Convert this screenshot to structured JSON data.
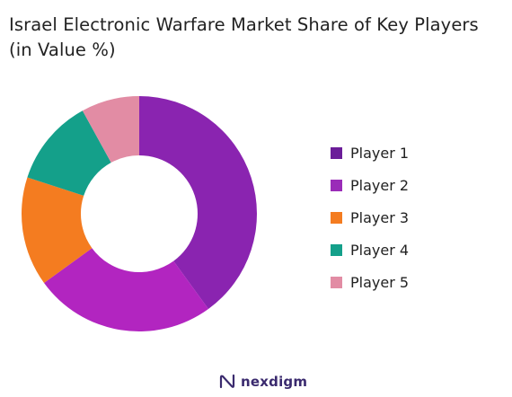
{
  "title_line1": "Israel Electronic Warfare Market Share of Key Players",
  "title_line2": "(in Value %)",
  "chart_data": {
    "type": "pie",
    "donut": true,
    "categories": [
      "Player 1",
      "Player 2",
      "Player 3",
      "Player 4",
      "Player 5"
    ],
    "values": [
      40,
      25,
      15,
      12,
      8
    ],
    "colors": [
      "#8a24b0",
      "#b225c0",
      "#f47c20",
      "#14a08a",
      "#e28ca4"
    ],
    "legend_colors": [
      "#6b1d99",
      "#9a2cb8",
      "#f47c20",
      "#14a08a",
      "#e28ca4"
    ],
    "legend_position": "right"
  },
  "logo": {
    "text": "nexdigm",
    "icon": "nexdigm-logo-icon"
  }
}
